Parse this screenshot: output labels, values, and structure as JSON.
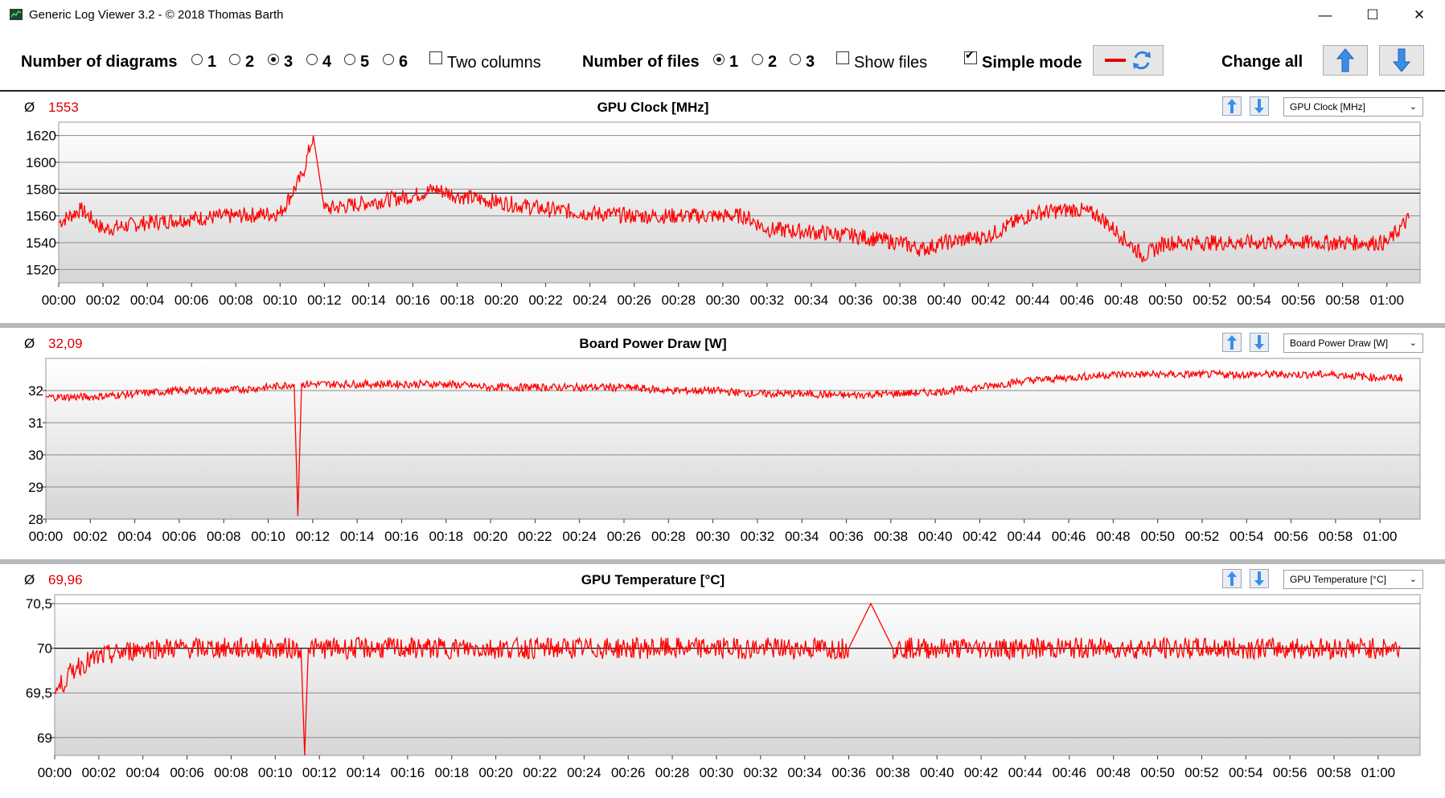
{
  "window": {
    "title": "Generic Log Viewer 3.2 - © 2018 Thomas Barth",
    "minimize": "—",
    "maximize": "☐",
    "close": "✕"
  },
  "toolbar": {
    "num_diagrams_label": "Number of diagrams",
    "diagram_options": [
      "1",
      "2",
      "3",
      "4",
      "5",
      "6"
    ],
    "diagram_selected": "3",
    "two_columns_label": "Two columns",
    "two_columns_checked": false,
    "num_files_label": "Number of files",
    "file_options": [
      "1",
      "2",
      "3"
    ],
    "file_selected": "1",
    "show_files_label": "Show files",
    "show_files_checked": false,
    "simple_mode_label": "Simple mode",
    "simple_mode_checked": true,
    "change_all_label": "Change all",
    "line_color": "#ff0000",
    "accent_color": "#2f7fe0"
  },
  "x_ticks": [
    "00:00",
    "00:02",
    "00:04",
    "00:06",
    "00:08",
    "00:10",
    "00:12",
    "00:14",
    "00:16",
    "00:18",
    "00:20",
    "00:22",
    "00:24",
    "00:26",
    "00:28",
    "00:30",
    "00:32",
    "00:34",
    "00:36",
    "00:38",
    "00:40",
    "00:42",
    "00:44",
    "00:46",
    "00:48",
    "00:50",
    "00:52",
    "00:54",
    "00:56",
    "00:58",
    "01:00"
  ],
  "panels": [
    {
      "avg_symbol": "Ø",
      "avg_value": "1553",
      "title": "GPU Clock [MHz]",
      "select_value": "GPU Clock [MHz]",
      "y_ticks": [
        "1620",
        "1600",
        "1580",
        "1560",
        "1540",
        "1520"
      ]
    },
    {
      "avg_symbol": "Ø",
      "avg_value": "32,09",
      "title": "Board Power Draw [W]",
      "select_value": "Board Power Draw [W]",
      "y_ticks": [
        "32",
        "31",
        "30",
        "29",
        "28"
      ]
    },
    {
      "avg_symbol": "Ø",
      "avg_value": "69,96",
      "title": "GPU Temperature [°C]",
      "select_value": "GPU Temperature [°C]",
      "y_ticks": [
        "70,5",
        "70",
        "69,5",
        "69"
      ]
    }
  ],
  "chart_data": [
    {
      "type": "line",
      "title": "GPU Clock [MHz]",
      "xlabel": "",
      "ylabel": "",
      "x_range": [
        "00:00",
        "01:01"
      ],
      "ylim": [
        1510,
        1630
      ],
      "y_gridlines": [
        1520,
        1540,
        1560,
        1580,
        1600,
        1620
      ],
      "average": 1553,
      "reference_line": 1577,
      "series": [
        {
          "x": [
            "00:00",
            "00:01",
            "00:02",
            "00:04",
            "00:06",
            "00:08",
            "00:10",
            "00:11",
            "00:11:30",
            "00:12",
            "00:14",
            "00:16",
            "00:17",
            "00:18",
            "00:20",
            "00:22",
            "00:24",
            "00:26",
            "00:28",
            "00:30",
            "00:31",
            "00:32",
            "00:34",
            "00:36",
            "00:38",
            "00:39",
            "00:40",
            "00:42",
            "00:44",
            "00:46",
            "00:47",
            "00:48",
            "00:49",
            "00:50",
            "00:52",
            "00:54",
            "00:56",
            "00:58",
            "01:00",
            "01:01"
          ],
          "values": [
            1555,
            1565,
            1550,
            1555,
            1558,
            1560,
            1562,
            1590,
            1620,
            1565,
            1570,
            1575,
            1580,
            1575,
            1570,
            1565,
            1562,
            1560,
            1560,
            1560,
            1560,
            1550,
            1548,
            1545,
            1540,
            1535,
            1540,
            1545,
            1562,
            1565,
            1560,
            1545,
            1530,
            1540,
            1540,
            1540,
            1540,
            1540,
            1540,
            1558
          ]
        }
      ]
    },
    {
      "type": "line",
      "title": "Board Power Draw [W]",
      "xlabel": "",
      "ylabel": "",
      "x_range": [
        "00:00",
        "01:01"
      ],
      "ylim": [
        28,
        33
      ],
      "y_gridlines": [
        28,
        29,
        30,
        31,
        32
      ],
      "average": 32.09,
      "series": [
        {
          "x": [
            "00:00",
            "00:02",
            "00:04",
            "00:06",
            "00:08",
            "00:10",
            "00:11:10",
            "00:11:20",
            "00:11:30",
            "00:12",
            "00:14",
            "00:16",
            "00:18",
            "00:20",
            "00:22",
            "00:24",
            "00:26",
            "00:28",
            "00:30",
            "00:32",
            "00:34",
            "00:36",
            "00:38",
            "00:40",
            "00:42",
            "00:44",
            "00:46",
            "00:48",
            "00:50",
            "00:52",
            "00:54",
            "00:56",
            "00:58",
            "01:00",
            "01:01"
          ],
          "values": [
            31.8,
            31.8,
            31.9,
            32.0,
            32.0,
            32.1,
            32.2,
            28.1,
            32.2,
            32.2,
            32.2,
            32.2,
            32.2,
            32.1,
            32.1,
            32.1,
            32.1,
            32.0,
            32.0,
            31.9,
            31.9,
            31.85,
            31.9,
            31.95,
            32.1,
            32.3,
            32.4,
            32.5,
            32.5,
            32.5,
            32.5,
            32.5,
            32.5,
            32.4,
            32.4
          ]
        }
      ]
    },
    {
      "type": "line",
      "title": "GPU Temperature [°C]",
      "xlabel": "",
      "ylabel": "",
      "x_range": [
        "00:00",
        "01:01"
      ],
      "ylim": [
        68.8,
        70.6
      ],
      "y_gridlines": [
        69,
        69.5,
        70,
        70.5
      ],
      "average": 69.96,
      "reference_line": 70.0,
      "series": [
        {
          "x": [
            "00:00",
            "00:01",
            "00:02",
            "00:04",
            "00:06",
            "00:08",
            "00:10",
            "00:11:10",
            "00:11:20",
            "00:11:30",
            "00:12",
            "00:14",
            "00:16",
            "00:18",
            "00:20",
            "00:22",
            "00:24",
            "00:26",
            "00:28",
            "00:30",
            "00:32",
            "00:34",
            "00:36",
            "00:37",
            "00:38",
            "00:40",
            "00:42",
            "00:44",
            "00:46",
            "00:48",
            "00:50",
            "00:52",
            "00:54",
            "00:56",
            "00:58",
            "01:00",
            "01:01"
          ],
          "values": [
            69.5,
            69.8,
            69.9,
            70.0,
            70.0,
            70.0,
            70.0,
            70.0,
            68.8,
            70.0,
            70.0,
            70.0,
            70.0,
            70.0,
            70.0,
            70.0,
            70.0,
            70.0,
            70.0,
            70.0,
            70.0,
            70.0,
            70.0,
            70.5,
            70.0,
            70.0,
            70.0,
            70.0,
            70.0,
            70.0,
            70.0,
            70.0,
            70.0,
            70.0,
            70.0,
            70.0,
            70.0
          ]
        }
      ]
    }
  ]
}
